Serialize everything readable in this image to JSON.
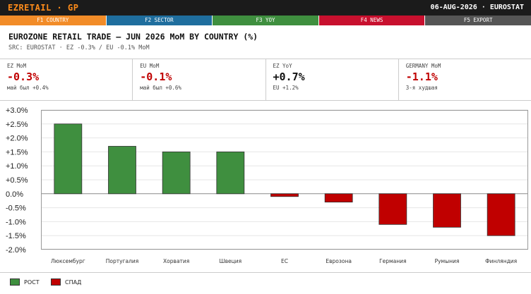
{
  "app": {
    "title": "EZRETAIL · GP",
    "date_source": "06-AUG-2026 · EUROSTAT"
  },
  "fkeys": [
    {
      "label": "F1 COUNTRY",
      "color": "#f28c28"
    },
    {
      "label": "F2 SECTOR",
      "color": "#1f6e9e"
    },
    {
      "label": "F3 YOY",
      "color": "#3f8f3f"
    },
    {
      "label": "F4 NEWS",
      "color": "#c8102e"
    },
    {
      "label": "F5 EXPORT",
      "color": "#555555"
    }
  ],
  "header": {
    "title": "EUROZONE RETAIL TRADE — JUN 2026 MoM BY COUNTRY (%)",
    "subtitle": "SRC: EUROSTAT · EZ -0.3% / EU -0.1% MoM"
  },
  "kpis": [
    {
      "label": "EZ MoM",
      "value": "-0.3%",
      "note": "май был +0.4%",
      "color": "#c00000"
    },
    {
      "label": "EU MoM",
      "value": "-0.1%",
      "note": "май был +0.6%",
      "color": "#c00000"
    },
    {
      "label": "EZ YoY",
      "value": "+0.7%",
      "note": "EU +1.2%",
      "color": "#111111"
    },
    {
      "label": "GERMANY MoM",
      "value": "-1.1%",
      "note": "3-я худшая",
      "color": "#c00000"
    }
  ],
  "colors": {
    "positive": "#3f8f3f",
    "negative": "#c00000"
  },
  "legend": {
    "up": "РОСТ",
    "down": "СПАД"
  },
  "chart_data": {
    "type": "bar",
    "categories": [
      "Люксембург",
      "Португалия",
      "Хорватия",
      "Швеция",
      "ЕС",
      "Еврозона",
      "Германия",
      "Румыния",
      "Финляндия"
    ],
    "values": [
      2.5,
      1.7,
      1.5,
      1.5,
      -0.1,
      -0.3,
      -1.1,
      -1.2,
      -1.5
    ],
    "ylim": [
      -2.0,
      3.0
    ],
    "yticks": [
      "+3.0%",
      "+2.5%",
      "+2.0%",
      "+1.5%",
      "+1.0%",
      "+0.5%",
      "0.0%",
      "-0.5%",
      "-1.0%",
      "-1.5%",
      "-2.0%"
    ],
    "ytick_values": [
      3.0,
      2.5,
      2.0,
      1.5,
      1.0,
      0.5,
      0.0,
      -0.5,
      -1.0,
      -1.5,
      -2.0
    ],
    "grid": true,
    "legend_position": "bottom-left"
  }
}
